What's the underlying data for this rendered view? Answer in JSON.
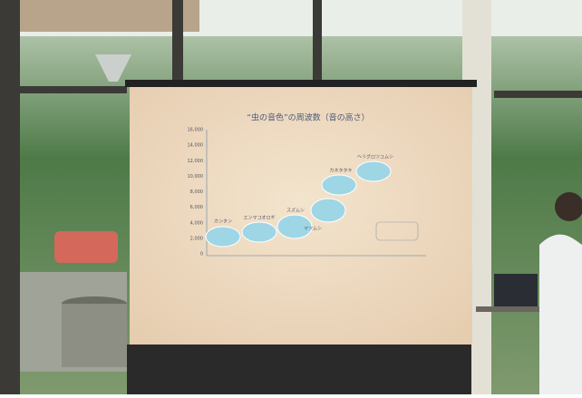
{
  "screen": {
    "title": "“虫の音色”の周波数（音の高さ）",
    "yticks": [
      "0",
      "2,000",
      "4,000",
      "6,000",
      "8,000",
      "10,000",
      "12,000",
      "14,000",
      "16,000"
    ],
    "insects": [
      "カンタン",
      "エンマコオロギ",
      "スズムシ",
      "マツムシ",
      "カネタタキ",
      "ヘリグロツユムシ"
    ]
  }
}
